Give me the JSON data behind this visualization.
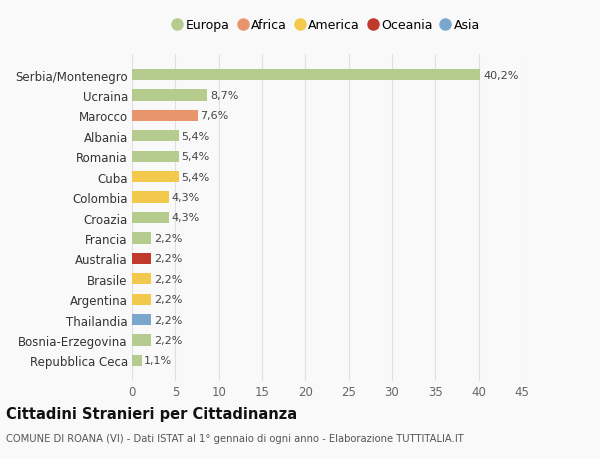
{
  "categories": [
    "Repubblica Ceca",
    "Bosnia-Erzegovina",
    "Thailandia",
    "Argentina",
    "Brasile",
    "Australia",
    "Francia",
    "Croazia",
    "Colombia",
    "Cuba",
    "Romania",
    "Albania",
    "Marocco",
    "Ucraina",
    "Serbia/Montenegro"
  ],
  "values": [
    1.1,
    2.2,
    2.2,
    2.2,
    2.2,
    2.2,
    2.2,
    4.3,
    4.3,
    5.4,
    5.4,
    5.4,
    7.6,
    8.7,
    40.2
  ],
  "colors": [
    "#b5cc8e",
    "#b5cc8e",
    "#7ba7cc",
    "#f2c94c",
    "#f2c94c",
    "#c0392b",
    "#b5cc8e",
    "#b5cc8e",
    "#f2c94c",
    "#f2c94c",
    "#b5cc8e",
    "#b5cc8e",
    "#e8956d",
    "#b5cc8e",
    "#b5cc8e"
  ],
  "labels": [
    "1,1%",
    "2,2%",
    "2,2%",
    "2,2%",
    "2,2%",
    "2,2%",
    "2,2%",
    "4,3%",
    "4,3%",
    "5,4%",
    "5,4%",
    "5,4%",
    "7,6%",
    "8,7%",
    "40,2%"
  ],
  "legend_labels": [
    "Europa",
    "Africa",
    "America",
    "Oceania",
    "Asia"
  ],
  "legend_colors": [
    "#b5cc8e",
    "#e8956d",
    "#f2c94c",
    "#c0392b",
    "#7ba7cc"
  ],
  "xlim": [
    0,
    45
  ],
  "xticks": [
    0,
    5,
    10,
    15,
    20,
    25,
    30,
    35,
    40,
    45
  ],
  "title": "Cittadini Stranieri per Cittadinanza",
  "subtitle": "COMUNE DI ROANA (VI) - Dati ISTAT al 1° gennaio di ogni anno - Elaborazione TUTTITALIA.IT",
  "background_color": "#f9f9f9",
  "grid_color": "#e0e0e0",
  "bar_height": 0.55
}
